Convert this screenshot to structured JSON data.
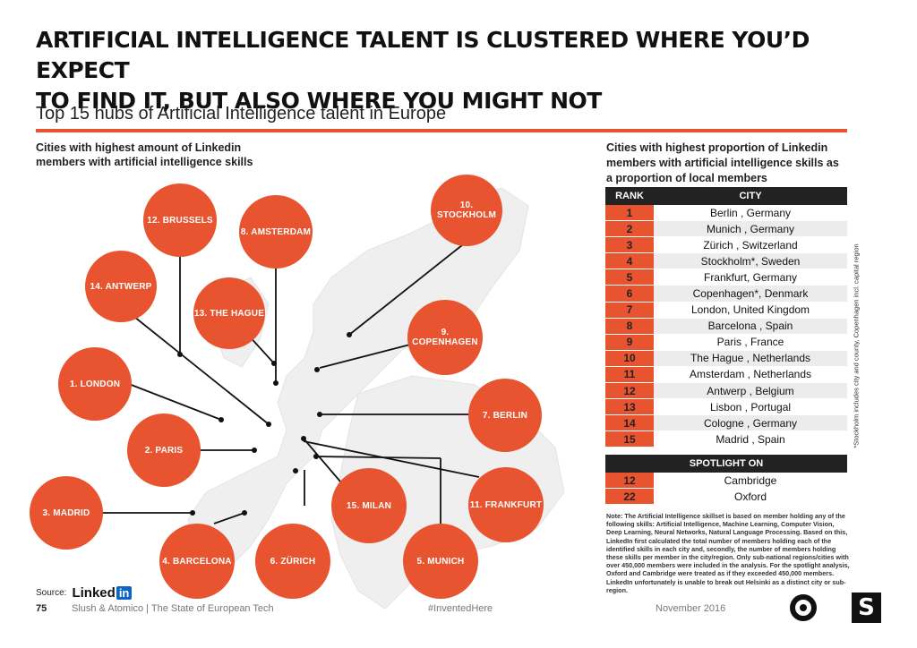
{
  "header": {
    "title_line1": "ARTIFICIAL INTELLIGENCE TALENT IS CLUSTERED WHERE YOU’D EXPECT",
    "title_line2": "TO FIND IT, BUT ALSO WHERE YOU MIGHT NOT",
    "subtitle": "Top 15 hubs of Artificial Intelligence talent in Europe"
  },
  "left_panel": {
    "caption_line1": "Cities with highest amount of Linkedin",
    "caption_line2": "members with artificial intelligence skills",
    "bubbles": {
      "brussels": "12. BRUSSELS",
      "amsterdam": "8. AMSTERDAM",
      "stockholm": "10. STOCKHOLM",
      "antwerp": "14. ANTWERP",
      "hague": "13. THE HAGUE",
      "copenhagen": "9. COPENHAGEN",
      "london": "1. LONDON",
      "berlin": "7. BERLIN",
      "paris": "2. PARIS",
      "madrid": "3. MADRID",
      "milan": "15. MILAN",
      "frankfurt": "11. FRANKFURT",
      "barcelona": "4. BARCELONA",
      "zurich": "6. ZÜRICH",
      "munich": "5. MUNICH"
    },
    "accent_color": "#e8542f"
  },
  "right_panel": {
    "caption_line1": "Cities with highest proportion of Linkedin",
    "caption_line2": "members with artificial intelligence skills as",
    "caption_line3": "a proportion of local members",
    "table_headers": {
      "rank": "RANK",
      "city": "CITY"
    },
    "rows": [
      {
        "rank": "1",
        "city": "Berlin , Germany"
      },
      {
        "rank": "2",
        "city": "Munich , Germany"
      },
      {
        "rank": "3",
        "city": "Zürich , Switzerland"
      },
      {
        "rank": "4",
        "city": "Stockholm*, Sweden"
      },
      {
        "rank": "5",
        "city": "Frankfurt, Germany"
      },
      {
        "rank": "6",
        "city": "Copenhagen*, Denmark"
      },
      {
        "rank": "7",
        "city": "London, United Kingdom"
      },
      {
        "rank": "8",
        "city": "Barcelona , Spain"
      },
      {
        "rank": "9",
        "city": "Paris , France"
      },
      {
        "rank": "10",
        "city": "The Hague , Netherlands"
      },
      {
        "rank": "11",
        "city": "Amsterdam , Netherlands"
      },
      {
        "rank": "12",
        "city": "Antwerp , Belgium"
      },
      {
        "rank": "13",
        "city": "Lisbon , Portugal"
      },
      {
        "rank": "14",
        "city": "Cologne , Germany"
      },
      {
        "rank": "15",
        "city": "Madrid , Spain"
      }
    ],
    "spotlight_header": "SPOTLIGHT ON",
    "spotlight_rows": [
      {
        "rank": "12",
        "city": "Cambridge"
      },
      {
        "rank": "22",
        "city": "Oxford"
      }
    ],
    "side_note": "*Stockholm includes city and county, Copenhagen incl. capital region",
    "note": "Note: The Artificial Intelligence skillset is based on member holding any of the following skills: Artificial Intelligence, Machine Learning, Computer Vision, Deep Learning, Neural Networks, Natural Language Processing. Based on this, LinkedIn first calculated the total number of members holding each of the identified skills in each city and, secondly, the number of members holding these skills per member in the city/region. Only sub-national regions/cities with over 450,000 members were included in the analysis. For the spotlight analysis, Oxford and Cambridge were treated as if they exceeded 450,000 members. LinkedIn unfortunately is unable to break out Helsinki as a distinct city or sub-region."
  },
  "footer": {
    "source_label": "Source:",
    "source_brand_word": "Linked",
    "source_brand_box": "in",
    "page_number": "75",
    "publisher": "Slush & Atomico  |  The State of European Tech",
    "hashtag": "#InventedHere",
    "date": "November 2016"
  }
}
